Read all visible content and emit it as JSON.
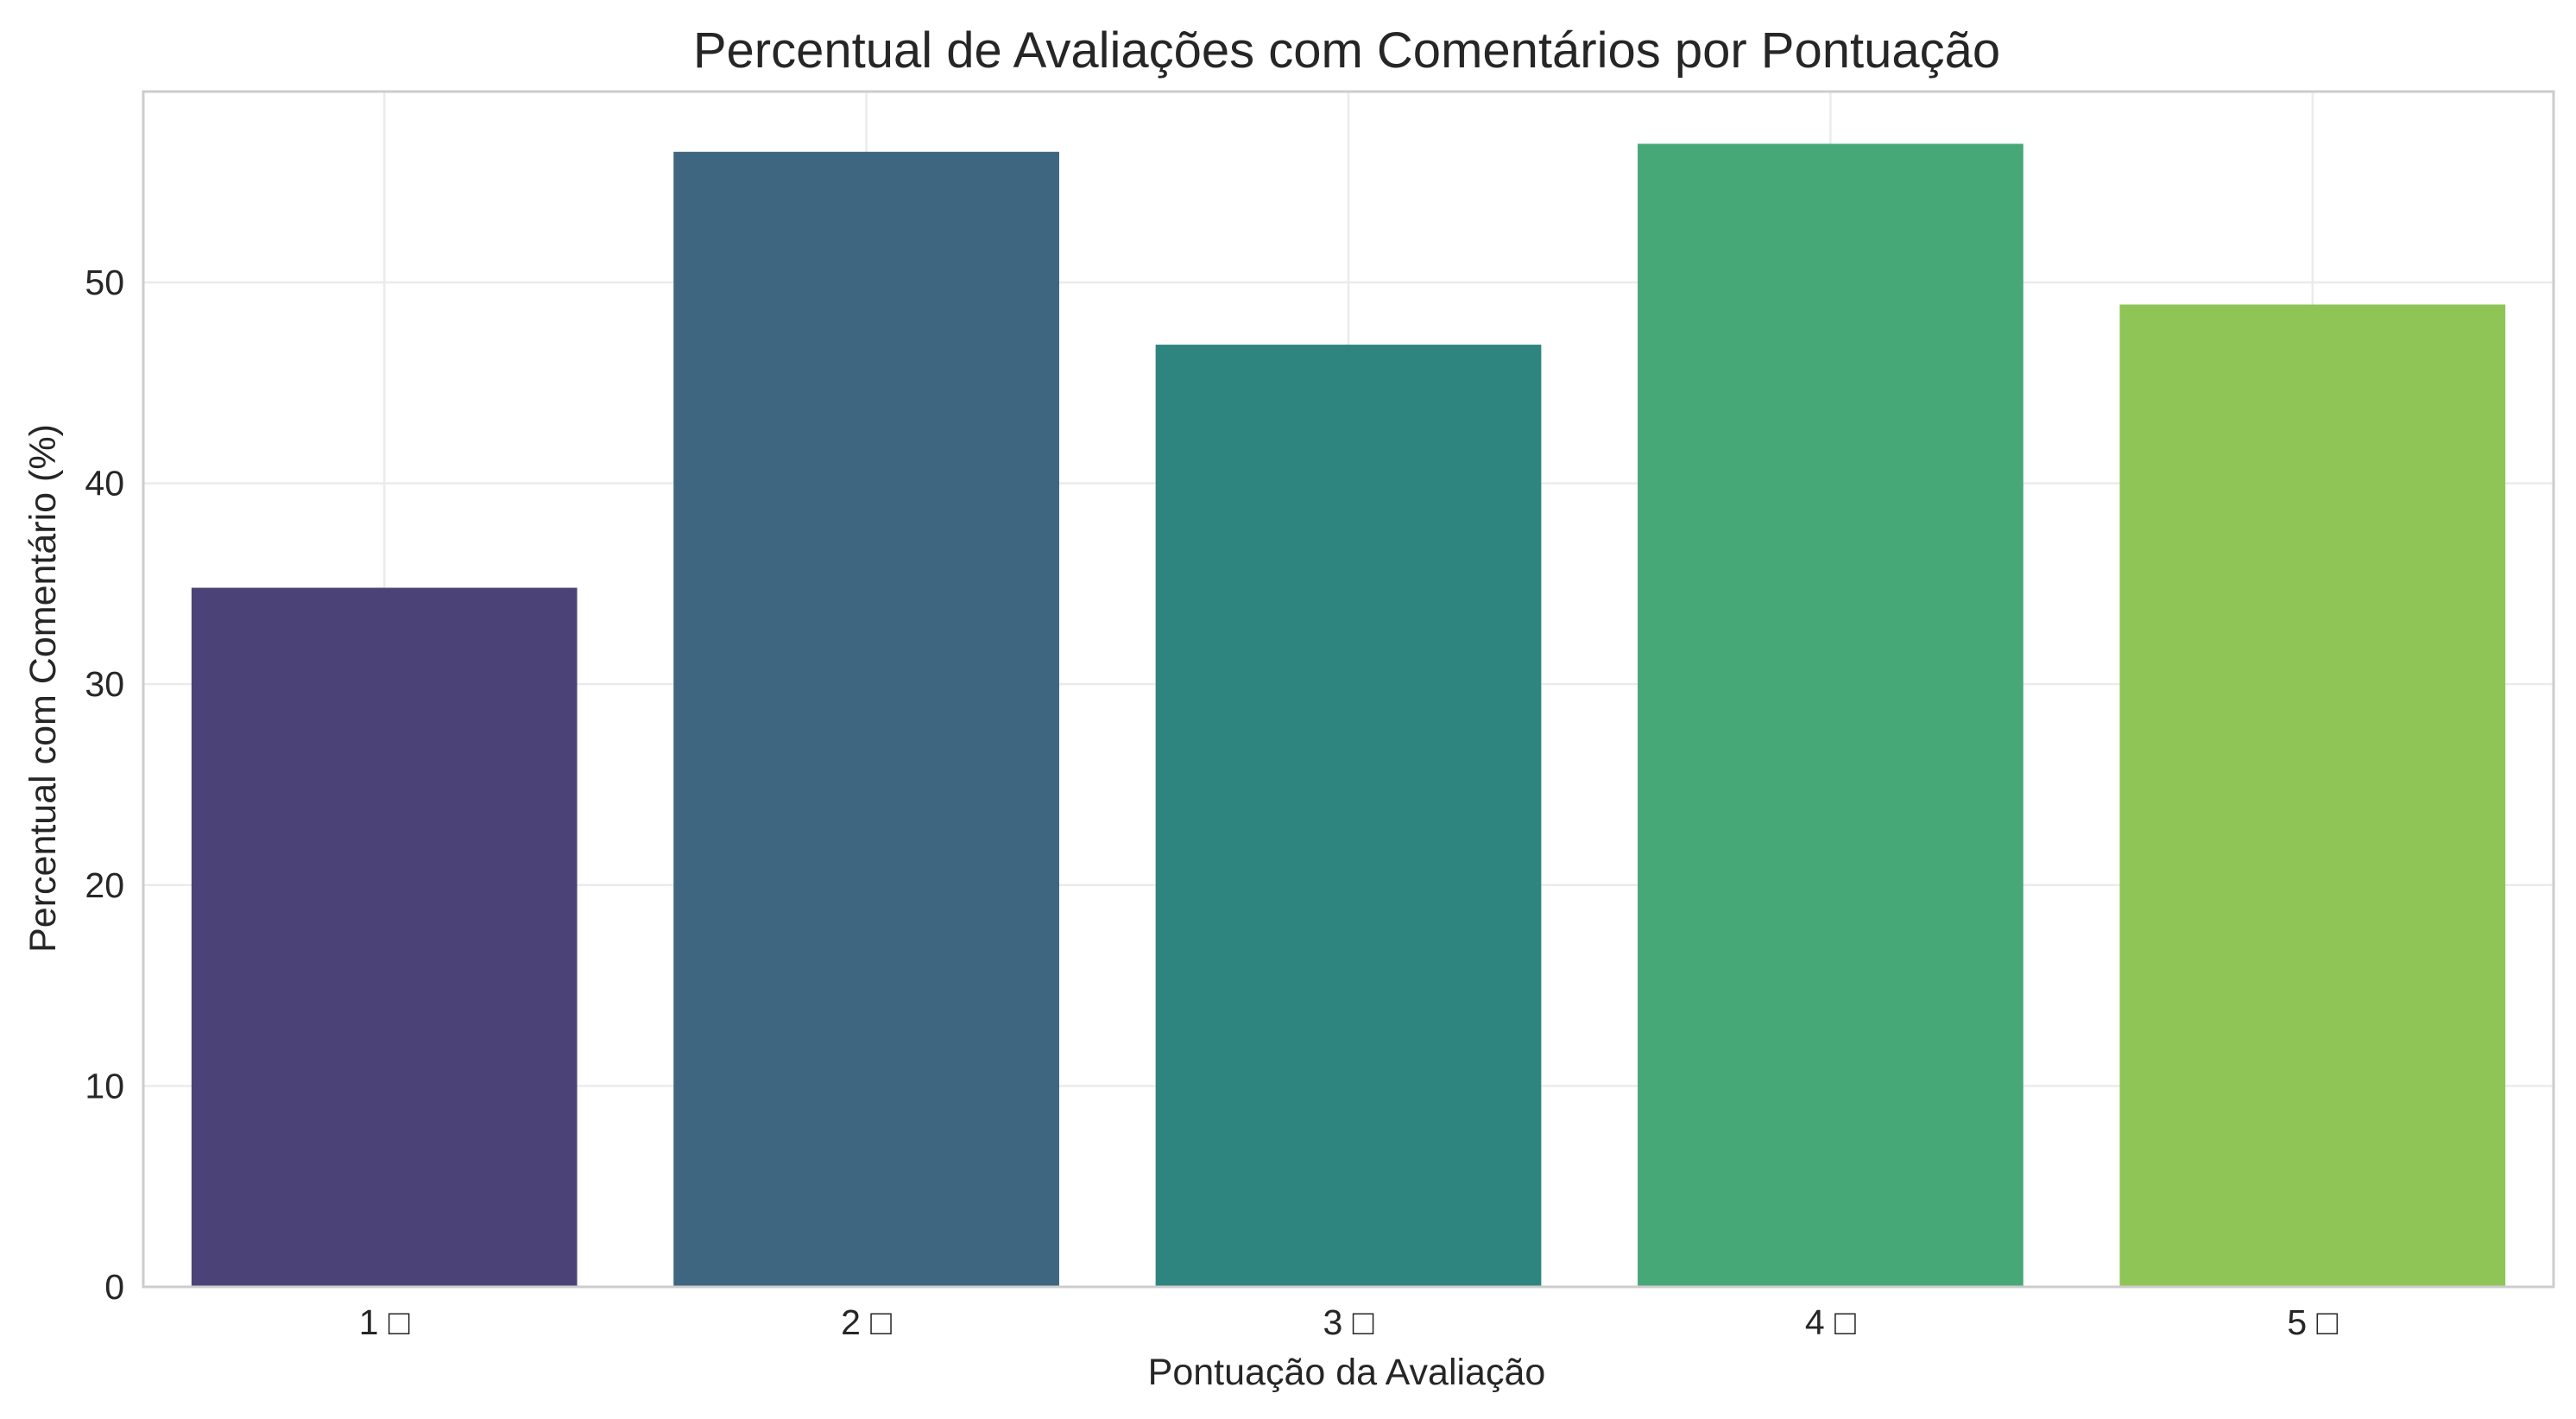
{
  "chart_data": {
    "type": "bar",
    "title": "Percentual de Avaliações com Comentários por Pontuação",
    "xlabel": "Pontuação da Avaliação",
    "ylabel": "Percentual com Comentário (%)",
    "categories": [
      "1 □",
      "2 □",
      "3 □",
      "4 □",
      "5 □"
    ],
    "values": [
      34.8,
      56.5,
      46.9,
      56.9,
      48.9
    ],
    "colors": [
      "#4b4378",
      "#3e6680",
      "#2e847f",
      "#47a877",
      "#8fc456"
    ],
    "ylim": [
      0,
      59.5
    ],
    "yticks": [
      0,
      10,
      20,
      30,
      40,
      50
    ],
    "grid": true,
    "legend": "none"
  }
}
